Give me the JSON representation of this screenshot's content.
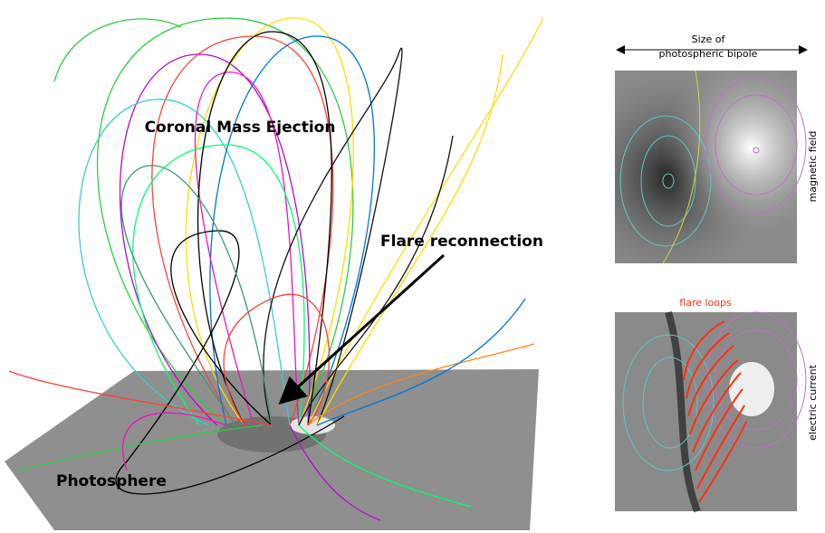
{
  "left_panel": {
    "cme_label": "Coronal Mass Ejection",
    "reconnection_label": "Flare reconnection",
    "photosphere_label": "Photosphere"
  },
  "right_panels": {
    "bipole_size_label": [
      "Size of",
      "photospheric bipole"
    ],
    "top": {
      "side_label": "magnetic field"
    },
    "bottom": {
      "title": "flare loops",
      "side_label": "electric current"
    }
  }
}
